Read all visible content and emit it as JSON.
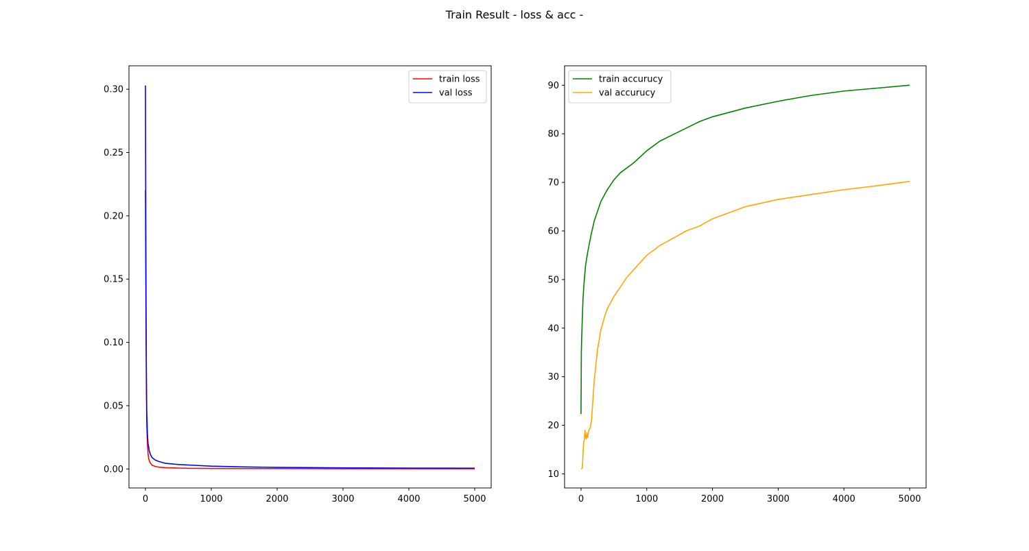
{
  "figure": {
    "suptitle": "Train Result - loss & acc -"
  },
  "chart_data": [
    {
      "type": "line",
      "title": "",
      "xlabel": "",
      "ylabel": "",
      "xlim": [
        -250,
        5250
      ],
      "ylim": [
        -0.015,
        0.3185
      ],
      "xticks": [
        0,
        1000,
        2000,
        3000,
        4000,
        5000
      ],
      "xtick_labels": [
        "0",
        "1000",
        "2000",
        "3000",
        "4000",
        "5000"
      ],
      "yticks": [
        0.0,
        0.05,
        0.1,
        0.15,
        0.2,
        0.25,
        0.3
      ],
      "ytick_labels": [
        "0.00",
        "0.05",
        "0.10",
        "0.15",
        "0.20",
        "0.25",
        "0.30"
      ],
      "grid": false,
      "legend": "top-right",
      "series": [
        {
          "name": "train loss",
          "color": "#ff0000",
          "x": [
            0,
            5,
            10,
            15,
            20,
            30,
            40,
            50,
            70,
            100,
            150,
            200,
            300,
            500,
            700,
            1000,
            1500,
            2000,
            3000,
            4000,
            5000
          ],
          "y": [
            0.22,
            0.16,
            0.1,
            0.06,
            0.035,
            0.02,
            0.012,
            0.008,
            0.005,
            0.003,
            0.002,
            0.0015,
            0.001,
            0.0007,
            0.0005,
            0.0004,
            0.0003,
            0.0003,
            0.0002,
            0.0002,
            0.0002
          ]
        },
        {
          "name": "val loss",
          "color": "#0000ff",
          "x": [
            0,
            5,
            10,
            15,
            20,
            30,
            40,
            60,
            80,
            100,
            150,
            200,
            300,
            500,
            700,
            1000,
            1500,
            2000,
            3000,
            4000,
            5000
          ],
          "y": [
            0.303,
            0.2,
            0.12,
            0.07,
            0.045,
            0.028,
            0.02,
            0.014,
            0.011,
            0.009,
            0.007,
            0.006,
            0.0045,
            0.0035,
            0.003,
            0.0022,
            0.0016,
            0.0013,
            0.0009,
            0.0007,
            0.0006
          ]
        }
      ]
    },
    {
      "type": "line",
      "title": "",
      "xlabel": "",
      "ylabel": "",
      "xlim": [
        -250,
        5250
      ],
      "ylim": [
        7.1,
        94.0
      ],
      "xticks": [
        0,
        1000,
        2000,
        3000,
        4000,
        5000
      ],
      "xtick_labels": [
        "0",
        "1000",
        "2000",
        "3000",
        "4000",
        "5000"
      ],
      "yticks": [
        10,
        20,
        30,
        40,
        50,
        60,
        70,
        80,
        90
      ],
      "ytick_labels": [
        "10",
        "20",
        "30",
        "40",
        "50",
        "60",
        "70",
        "80",
        "90"
      ],
      "grid": false,
      "legend": "top-left",
      "series": [
        {
          "name": "train accurucy",
          "color": "#008000",
          "x": [
            0,
            5,
            10,
            20,
            30,
            50,
            70,
            100,
            150,
            200,
            300,
            400,
            500,
            600,
            800,
            1000,
            1200,
            1500,
            1800,
            2000,
            2500,
            3000,
            3500,
            4000,
            4500,
            5000
          ],
          "y": [
            22.3,
            35,
            38,
            42,
            46,
            50,
            53,
            55.5,
            59,
            62,
            66,
            68.5,
            70.5,
            72,
            74,
            76.5,
            78.5,
            80.5,
            82.5,
            83.5,
            85.3,
            86.7,
            87.9,
            88.8,
            89.4,
            90.0
          ]
        },
        {
          "name": "val accurucy",
          "color": "#ffa500",
          "x": [
            0,
            10,
            20,
            30,
            40,
            50,
            60,
            70,
            80,
            90,
            100,
            120,
            140,
            160,
            180,
            200,
            250,
            300,
            350,
            400,
            500,
            600,
            700,
            800,
            1000,
            1200,
            1400,
            1600,
            1800,
            2000,
            2500,
            3000,
            3500,
            4000,
            4500,
            5000
          ],
          "y": [
            11.1,
            11.1,
            11.2,
            14,
            16.5,
            17,
            19,
            17.5,
            17.2,
            18.5,
            17.5,
            19,
            19.5,
            21,
            25,
            29,
            35.5,
            39.5,
            42,
            44,
            46.5,
            48.5,
            50.5,
            52,
            55,
            57,
            58.5,
            60,
            61,
            62.5,
            65,
            66.5,
            67.5,
            68.5,
            69.3,
            70.2
          ]
        }
      ]
    }
  ]
}
